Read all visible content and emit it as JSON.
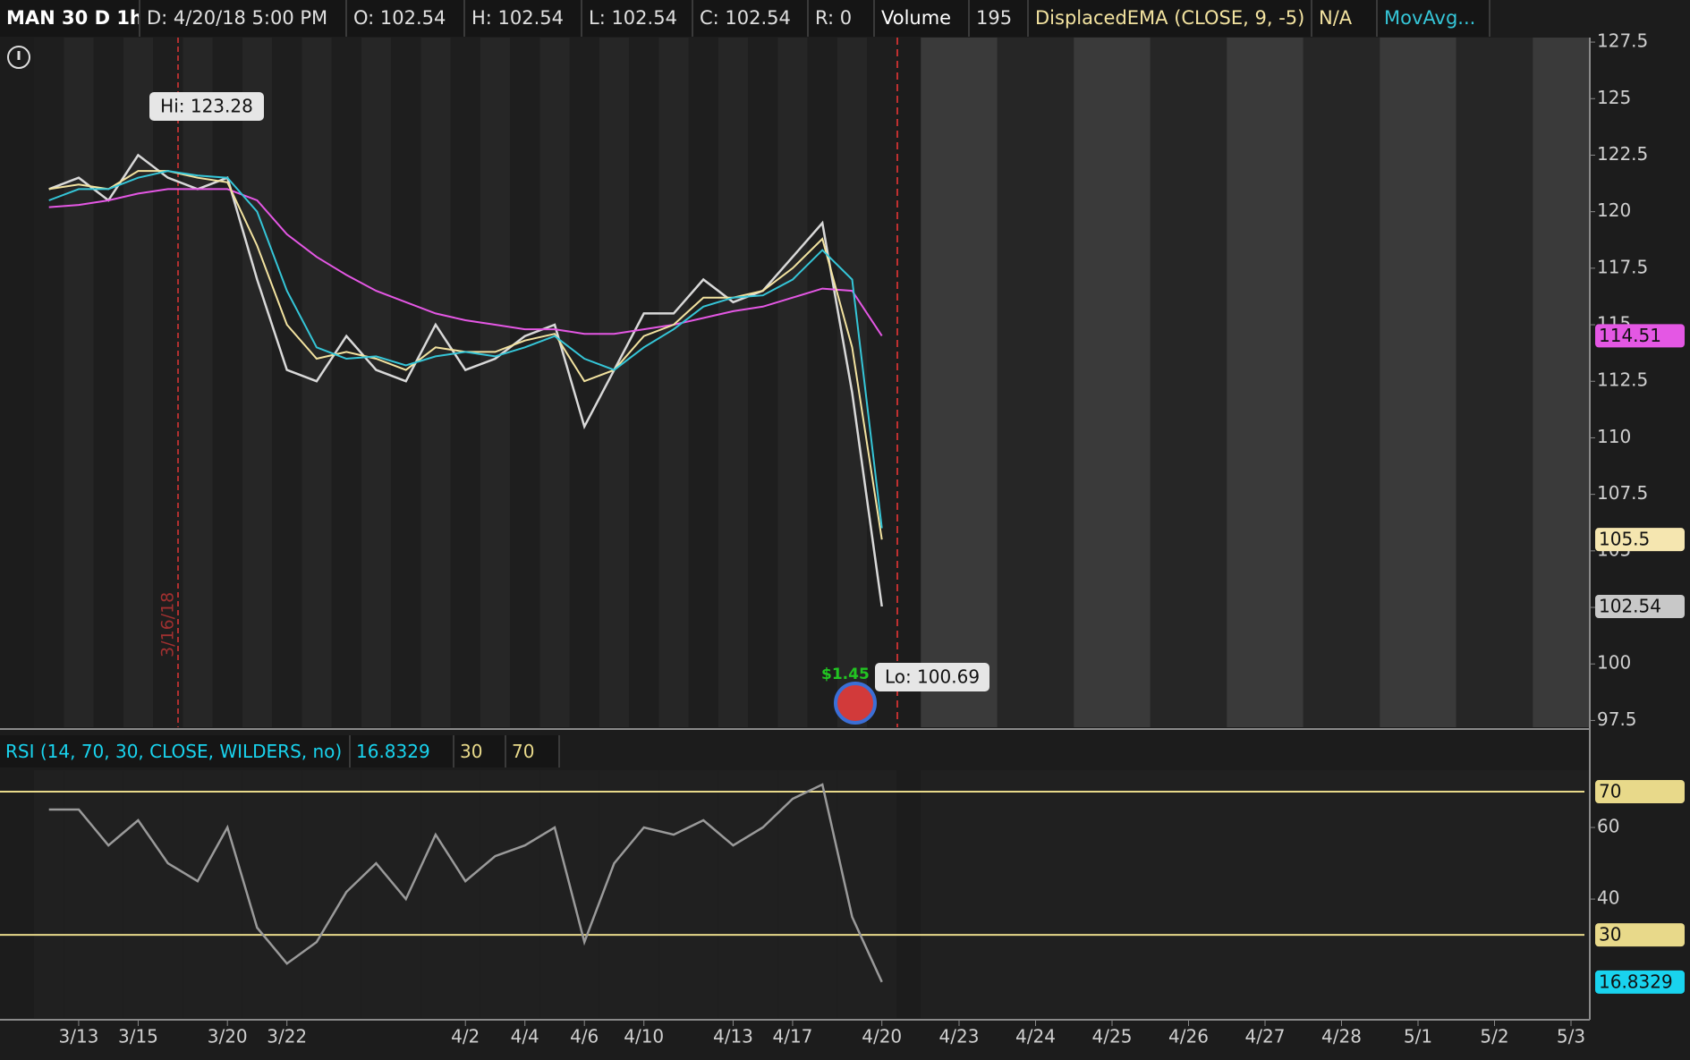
{
  "header": {
    "symbol": "MAN 30 D 1h",
    "date": "D: 4/20/18 5:00 PM",
    "open": "O: 102.54",
    "high": "H: 102.54",
    "low": "L: 102.54",
    "close": "C: 102.54",
    "range": "R: 0",
    "volume_label": "Volume",
    "volume": "195",
    "ema_value": "N/A"
  },
  "chart_data": [
    {
      "type": "line",
      "categories": [
        null,
        "3/13",
        null,
        "3/15",
        null,
        null,
        "3/20",
        null,
        "3/22",
        null,
        null,
        null,
        null,
        null,
        "4/2",
        null,
        "4/4",
        null,
        "4/6",
        null,
        "4/10",
        null,
        null,
        "4/13",
        null,
        "4/17",
        null,
        null,
        "4/20",
        "4/23",
        "4/24",
        "4/25",
        "4/26",
        "4/27",
        "4/28",
        "5/1",
        "5/2",
        "5/3"
      ],
      "series": [
        {
          "color": "#d9d9d9",
          "values": [
            121,
            121.5,
            120.5,
            122.5,
            121.5,
            121,
            121.5,
            117,
            113,
            112.5,
            114.5,
            113,
            112.5,
            115,
            113,
            113.5,
            114.5,
            115,
            110.5,
            113,
            115.5,
            115.5,
            117,
            116,
            116.5,
            118,
            119.5,
            112,
            102.54,
            null,
            null,
            null,
            null,
            null,
            null,
            null,
            null,
            null
          ]
        },
        {
          "color": "#e457e4",
          "values": [
            120.2,
            120.3,
            120.5,
            120.8,
            121,
            121,
            121,
            120.5,
            119,
            118,
            117.2,
            116.5,
            116,
            115.5,
            115.2,
            115,
            114.8,
            114.8,
            114.6,
            114.6,
            114.8,
            115,
            115.3,
            115.6,
            115.8,
            116.2,
            116.6,
            116.5,
            114.51,
            null,
            null,
            null,
            null,
            null,
            null,
            null,
            null,
            null
          ]
        },
        {
          "name": "DisplacedEMA (CLOSE, 9, -5)",
          "color": "#f3e3a0",
          "values": [
            121,
            121.2,
            121,
            121.8,
            121.8,
            121.5,
            121.3,
            118.5,
            115,
            113.5,
            113.8,
            113.5,
            113,
            114,
            113.8,
            113.8,
            114.3,
            114.6,
            112.5,
            113,
            114.5,
            115,
            116.2,
            116.2,
            116.5,
            117.5,
            118.8,
            114,
            105.5,
            null,
            null,
            null,
            null,
            null,
            null,
            null,
            null,
            null
          ]
        },
        {
          "name": "MovAvg...",
          "color": "#35c6d8",
          "values": [
            120.5,
            121,
            121,
            121.5,
            121.8,
            121.6,
            121.5,
            120,
            116.5,
            114,
            113.5,
            113.6,
            113.2,
            113.6,
            113.8,
            113.6,
            114,
            114.5,
            113.5,
            113,
            114,
            114.8,
            115.8,
            116.2,
            116.3,
            117,
            118.3,
            117,
            106,
            null,
            null,
            null,
            null,
            null,
            null,
            null,
            null,
            null
          ]
        }
      ],
      "ylim": [
        97.2,
        127.7
      ],
      "yticks": [
        97.5,
        100,
        102.5,
        105,
        107.5,
        110,
        112.5,
        115,
        117.5,
        120,
        122.5,
        125,
        127.5
      ],
      "badges": [
        {
          "value": 114.51,
          "color": "#e457e4"
        },
        {
          "value": 105.5,
          "color": "#f5e6b0"
        },
        {
          "value": 102.54,
          "color": "#c8c8c8"
        }
      ],
      "annotations": [
        "Hi: 123.28",
        "Lo: 100.69",
        "3/16/18",
        "$1.45"
      ]
    },
    {
      "type": "line",
      "title": "RSI (14, 70, 30, CLOSE, WILDERS, no)",
      "series": [
        {
          "color": "#9a9a9a",
          "values": [
            65,
            65,
            55,
            62,
            50,
            45,
            60,
            32,
            22,
            28,
            42,
            50,
            40,
            58,
            45,
            52,
            55,
            60,
            28,
            50,
            60,
            58,
            62,
            55,
            60,
            68,
            72,
            35,
            16.8329,
            null,
            null,
            null,
            null,
            null,
            null,
            null,
            null,
            null
          ]
        }
      ],
      "ylim": [
        6.8,
        76
      ],
      "yticks": [
        40,
        60
      ],
      "levels": [
        70,
        30
      ],
      "level_color": "#e8d98a",
      "value_color": "#19d3ee"
    }
  ]
}
